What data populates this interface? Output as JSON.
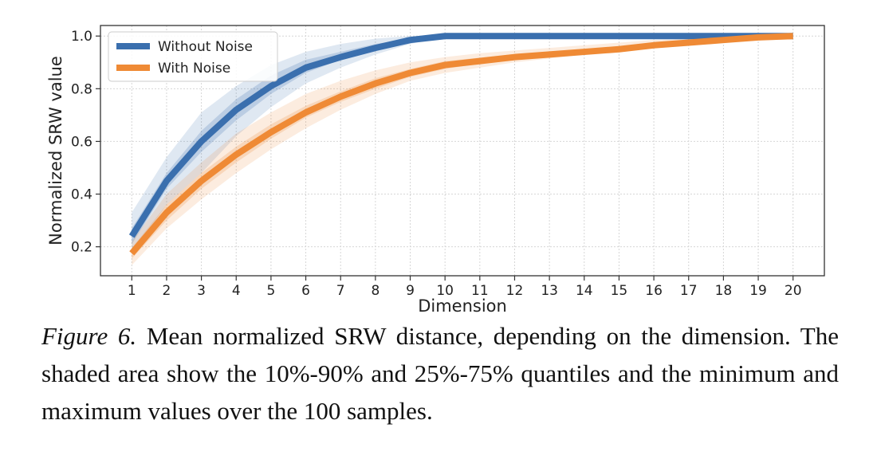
{
  "chart_data": {
    "type": "line",
    "xlabel": "Dimension",
    "ylabel": "Normalized SRW value",
    "x": [
      1,
      2,
      3,
      4,
      5,
      6,
      7,
      8,
      9,
      10,
      11,
      12,
      13,
      14,
      15,
      16,
      17,
      18,
      19,
      20
    ],
    "xlim": [
      0.1,
      20.9
    ],
    "ylim": [
      0.09,
      1.04
    ],
    "yticks": [
      0.2,
      0.4,
      0.6,
      0.8,
      1.0
    ],
    "yticklabels": [
      "0.2",
      "0.4",
      "0.6",
      "0.8",
      "1.0"
    ],
    "xticklabels": [
      "1",
      "2",
      "3",
      "4",
      "5",
      "6",
      "7",
      "8",
      "9",
      "10",
      "11",
      "12",
      "13",
      "14",
      "15",
      "16",
      "17",
      "18",
      "19",
      "20"
    ],
    "grid": true,
    "legend_position": "upper-left",
    "series": [
      {
        "name": "Without Noise",
        "color": "#3a6fae",
        "values": [
          0.24,
          0.45,
          0.6,
          0.72,
          0.81,
          0.88,
          0.92,
          0.955,
          0.985,
          1.0,
          1.0,
          1.0,
          1.0,
          1.0,
          1.0,
          1.0,
          1.0,
          1.0,
          1.0,
          1.0
        ],
        "band_outer_low": [
          0.17,
          0.36,
          0.48,
          0.62,
          0.73,
          0.82,
          0.88,
          0.93,
          0.97,
          1.0,
          1.0,
          1.0,
          1.0,
          1.0,
          1.0,
          1.0,
          1.0,
          1.0,
          1.0,
          1.0
        ],
        "band_outer_high": [
          0.33,
          0.54,
          0.71,
          0.81,
          0.89,
          0.94,
          0.97,
          0.99,
          1.0,
          1.0,
          1.0,
          1.0,
          1.0,
          1.0,
          1.0,
          1.0,
          1.0,
          1.0,
          1.0,
          1.0
        ],
        "band_inner_low": [
          0.21,
          0.42,
          0.56,
          0.68,
          0.78,
          0.86,
          0.91,
          0.945,
          0.98,
          1.0,
          1.0,
          1.0,
          1.0,
          1.0,
          1.0,
          1.0,
          1.0,
          1.0,
          1.0,
          1.0
        ],
        "band_inner_high": [
          0.27,
          0.48,
          0.64,
          0.76,
          0.85,
          0.91,
          0.94,
          0.97,
          0.99,
          1.0,
          1.0,
          1.0,
          1.0,
          1.0,
          1.0,
          1.0,
          1.0,
          1.0,
          1.0,
          1.0
        ]
      },
      {
        "name": "With Noise",
        "color": "#ef8a35",
        "values": [
          0.175,
          0.33,
          0.45,
          0.55,
          0.635,
          0.71,
          0.77,
          0.82,
          0.86,
          0.89,
          0.905,
          0.92,
          0.93,
          0.94,
          0.95,
          0.965,
          0.975,
          0.985,
          0.995,
          1.0
        ],
        "band_outer_low": [
          0.13,
          0.27,
          0.38,
          0.48,
          0.57,
          0.65,
          0.72,
          0.78,
          0.83,
          0.86,
          0.88,
          0.9,
          0.915,
          0.93,
          0.94,
          0.955,
          0.97,
          0.98,
          0.99,
          1.0
        ],
        "band_outer_high": [
          0.22,
          0.4,
          0.52,
          0.63,
          0.71,
          0.78,
          0.83,
          0.87,
          0.9,
          0.92,
          0.935,
          0.945,
          0.955,
          0.965,
          0.975,
          0.985,
          0.99,
          0.995,
          1.0,
          1.0
        ],
        "band_inner_low": [
          0.155,
          0.3,
          0.42,
          0.52,
          0.61,
          0.69,
          0.75,
          0.8,
          0.845,
          0.875,
          0.895,
          0.91,
          0.922,
          0.935,
          0.945,
          0.96,
          0.972,
          0.983,
          0.993,
          1.0
        ],
        "band_inner_high": [
          0.195,
          0.36,
          0.48,
          0.58,
          0.665,
          0.735,
          0.79,
          0.84,
          0.875,
          0.905,
          0.918,
          0.932,
          0.94,
          0.948,
          0.958,
          0.97,
          0.98,
          0.99,
          0.998,
          1.0
        ]
      }
    ]
  },
  "caption": {
    "label": "Figure 6.",
    "text": "Mean normalized SRW distance, depending on the dimension.  The shaded area show the 10%-90% and 25%-75% quantiles and the minimum and maximum values over the 100 samples."
  }
}
